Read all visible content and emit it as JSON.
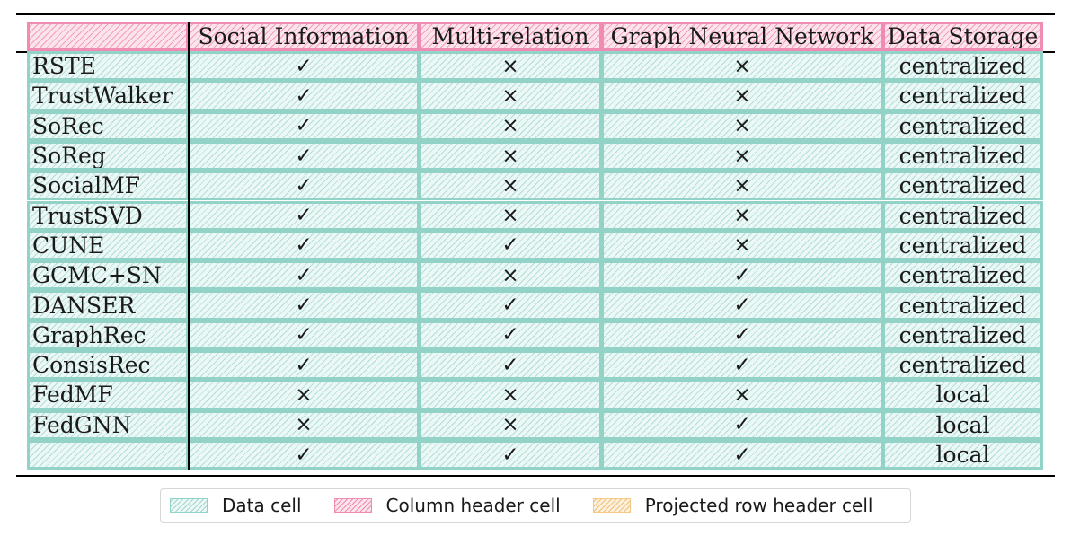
{
  "table": {
    "headers": [
      "",
      "Social Information",
      "Multi-relation",
      "Graph Neural Network",
      "Data Storage"
    ],
    "rows": [
      [
        "RSTE",
        "✓",
        "×",
        "×",
        "centralized"
      ],
      [
        "TrustWalker",
        "✓",
        "×",
        "×",
        "centralized"
      ],
      [
        "SoRec",
        "✓",
        "×",
        "×",
        "centralized"
      ],
      [
        "SoReg",
        "✓",
        "×",
        "×",
        "centralized"
      ],
      [
        "SocialMF",
        "✓",
        "×",
        "×",
        "centralized"
      ],
      [
        "TrustSVD",
        "✓",
        "×",
        "×",
        "centralized"
      ],
      [
        "CUNE",
        "✓",
        "✓",
        "×",
        "centralized"
      ],
      [
        "GCMC+SN",
        "✓",
        "×",
        "✓",
        "centralized"
      ],
      [
        "DANSER",
        "✓",
        "✓",
        "✓",
        "centralized"
      ],
      [
        "GraphRec",
        "✓",
        "✓",
        "✓",
        "centralized"
      ],
      [
        "ConsisRec",
        "✓",
        "✓",
        "✓",
        "centralized"
      ],
      [
        "FedMF",
        "×",
        "×",
        "×",
        "local"
      ],
      [
        "FedGNN",
        "×",
        "×",
        "✓",
        "local"
      ],
      [
        "",
        "✓",
        "✓",
        "✓",
        "local"
      ]
    ]
  },
  "legend": {
    "data_cell": "Data cell",
    "column_header_cell": "Column header cell",
    "projected_row_header_cell": "Projected row header cell"
  },
  "colors": {
    "data_fill": "#ecf8f6",
    "data_border": "#93d2c6",
    "header_fill": "#fce4ec",
    "header_border": "#f08cb4",
    "projected_fill": "#fdf0dc",
    "projected_border": "#f5c985"
  }
}
